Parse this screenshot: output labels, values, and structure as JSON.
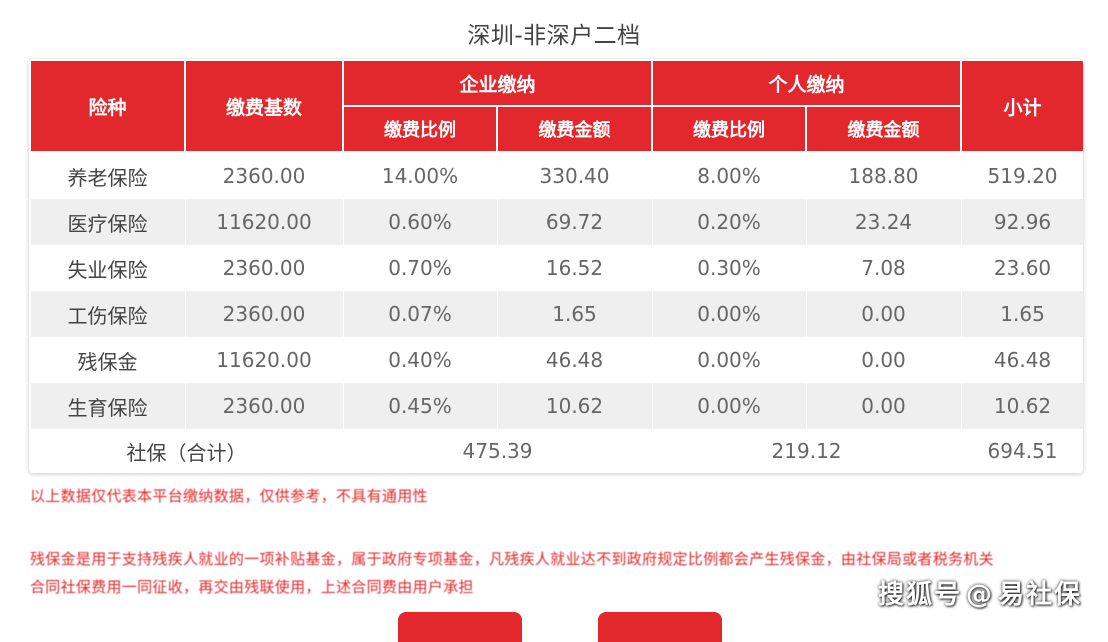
{
  "title": "深圳-非深户二档",
  "table": {
    "headers": {
      "category": "险种",
      "base": "缴费基数",
      "company_group": "企业缴纳",
      "personal_group": "个人缴纳",
      "subtotal": "小计",
      "rate": "缴费比例",
      "amount": "缴费金额"
    },
    "rows": [
      {
        "name": "养老保险",
        "base": "2360.00",
        "co_rate": "14.00%",
        "co_amt": "330.40",
        "p_rate": "8.00%",
        "p_amt": "188.80",
        "subtotal": "519.20"
      },
      {
        "name": "医疗保险",
        "base": "11620.00",
        "co_rate": "0.60%",
        "co_amt": "69.72",
        "p_rate": "0.20%",
        "p_amt": "23.24",
        "subtotal": "92.96"
      },
      {
        "name": "失业保险",
        "base": "2360.00",
        "co_rate": "0.70%",
        "co_amt": "16.52",
        "p_rate": "0.30%",
        "p_amt": "7.08",
        "subtotal": "23.60"
      },
      {
        "name": "工伤保险",
        "base": "2360.00",
        "co_rate": "0.07%",
        "co_amt": "1.65",
        "p_rate": "0.00%",
        "p_amt": "0.00",
        "subtotal": "1.65"
      },
      {
        "name": "残保金",
        "base": "11620.00",
        "co_rate": "0.40%",
        "co_amt": "46.48",
        "p_rate": "0.00%",
        "p_amt": "0.00",
        "subtotal": "46.48"
      },
      {
        "name": "生育保险",
        "base": "2360.00",
        "co_rate": "0.45%",
        "co_amt": "10.62",
        "p_rate": "0.00%",
        "p_amt": "0.00",
        "subtotal": "10.62"
      }
    ],
    "total": {
      "label": "社保（合计）",
      "company": "475.39",
      "personal": "219.12",
      "subtotal": "694.51"
    }
  },
  "notes": {
    "line1": "以上数据仅代表本平台缴纳数据，仅供参考，不具有通用性",
    "line2": "残保金是用于支持残疾人就业的一项补贴基金，属于政府专项基金，凡残疾人就业达不到政府规定比例都会产生残保金，由社保局或者税务机关",
    "line3": "合同社保费用一同征收，再交由残联使用，上述合同费由用户承担"
  },
  "watermark": {
    "prefix": "搜狐号",
    "icon": "at-icon",
    "suffix": "易社保"
  }
}
